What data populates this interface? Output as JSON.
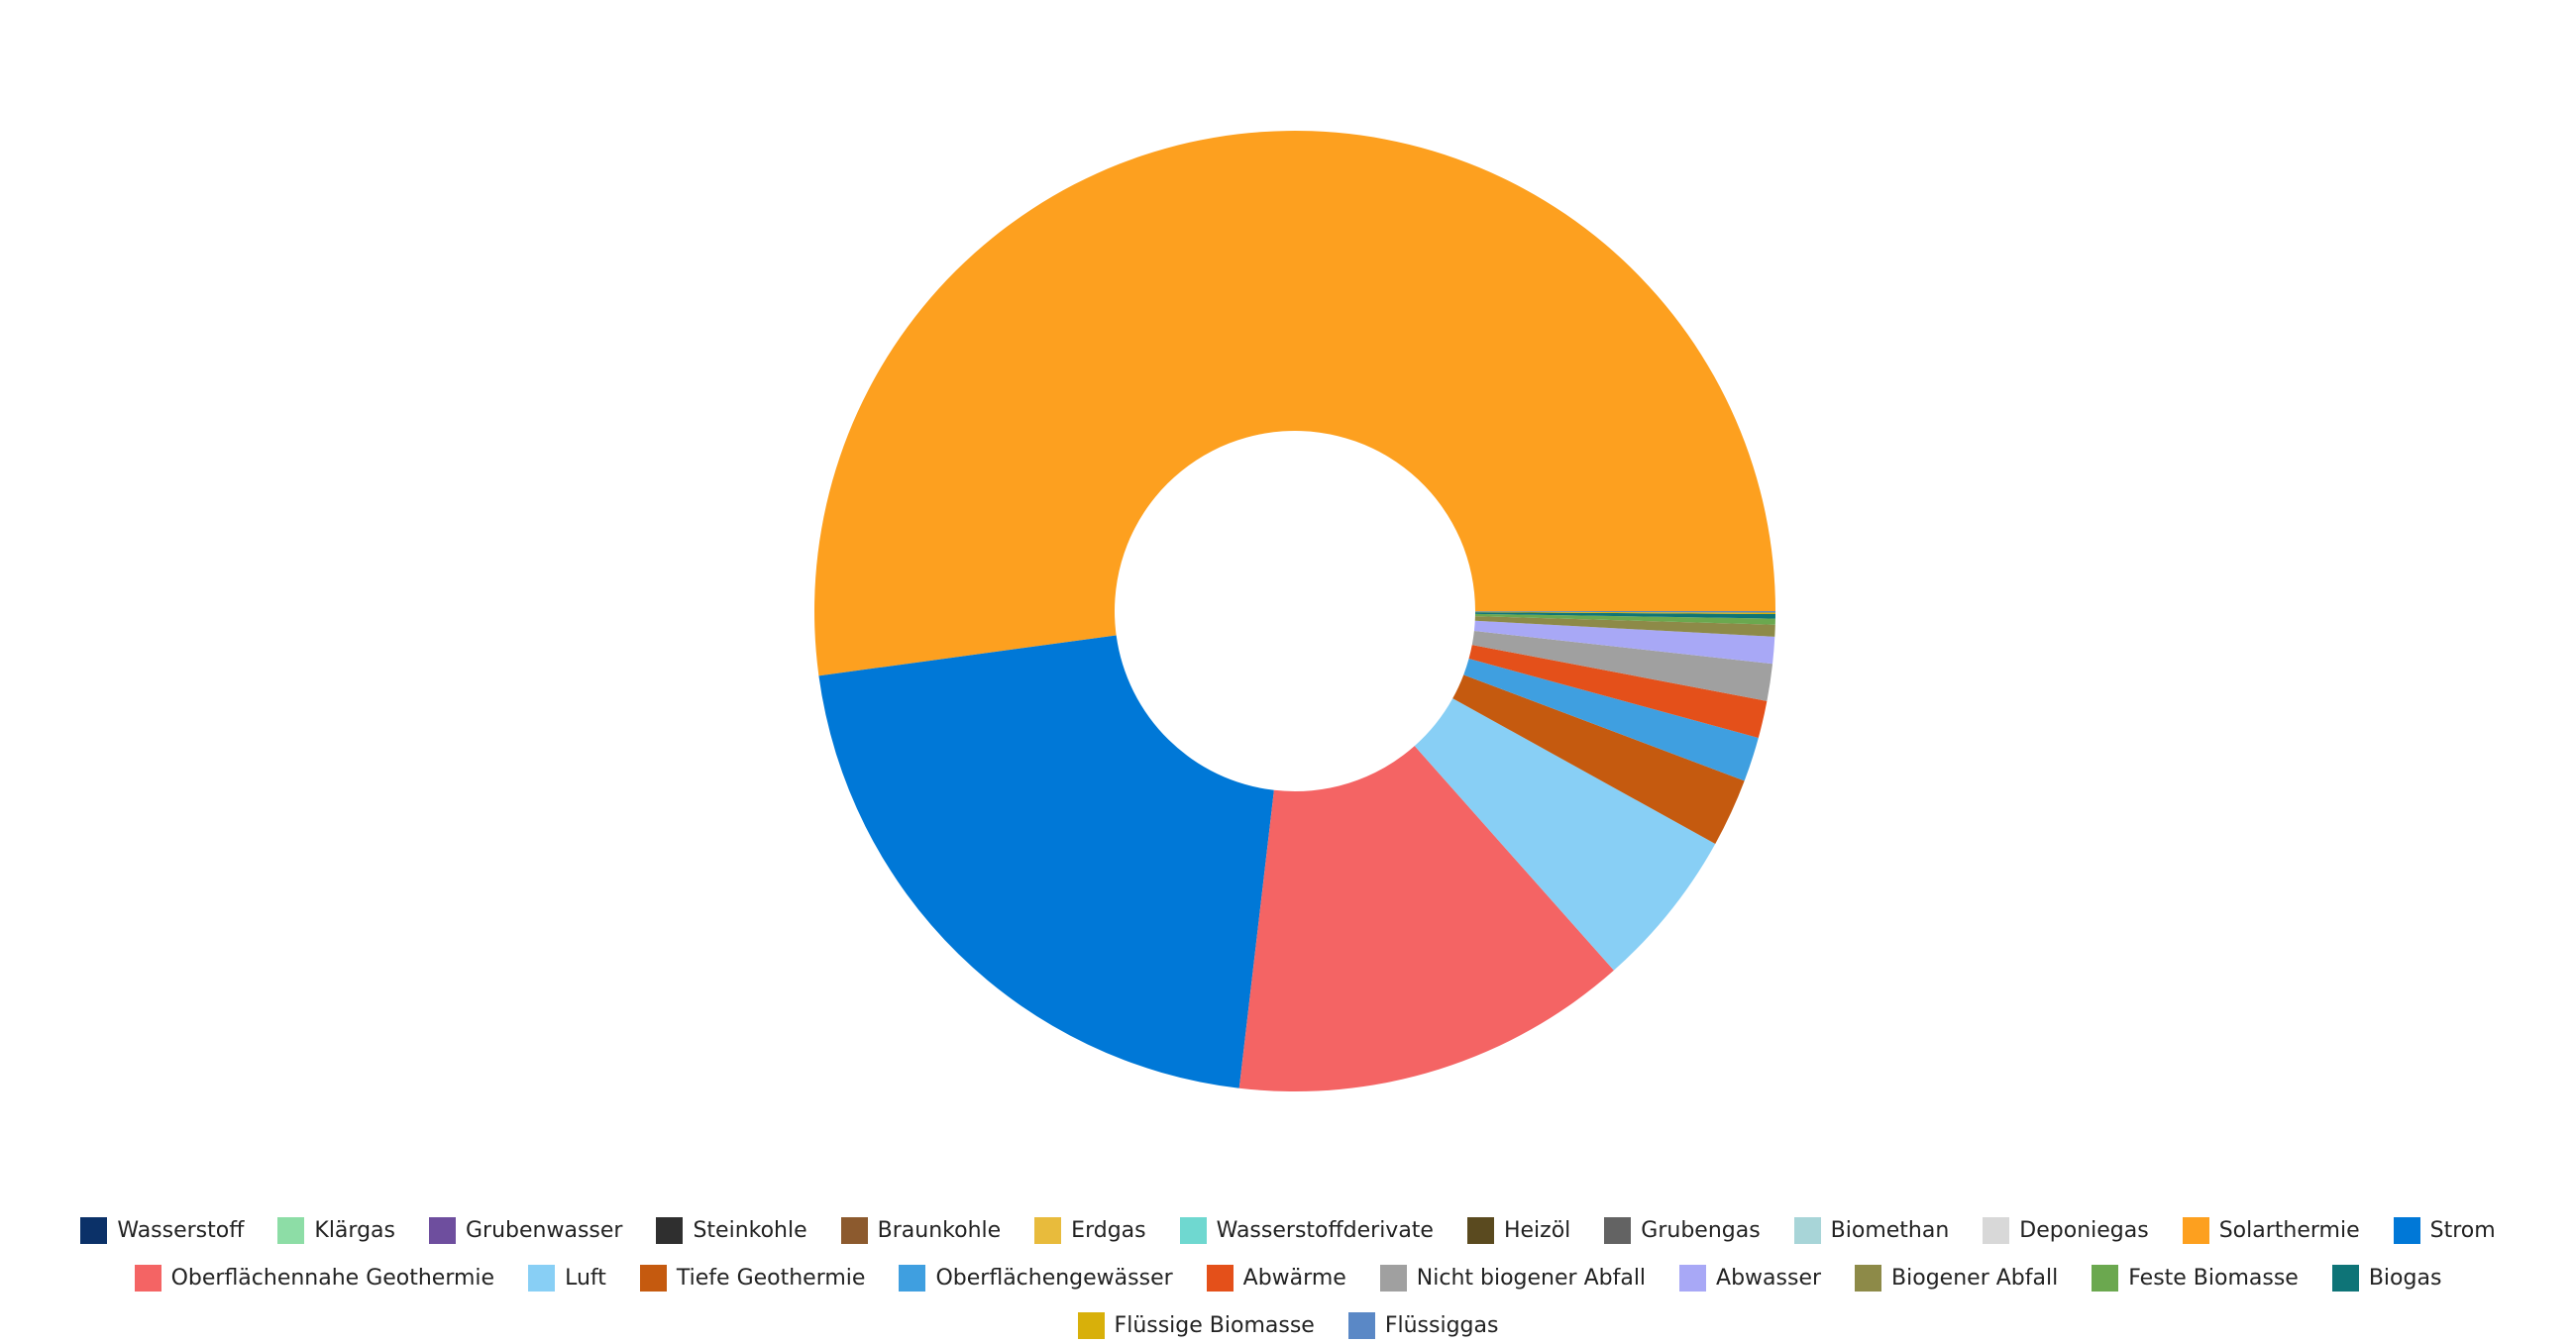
{
  "chart_data": {
    "type": "donut",
    "categories": [
      "Wasserstoff",
      "Klärgas",
      "Grubenwasser",
      "Steinkohle",
      "Braunkohle",
      "Erdgas",
      "Wasserstoffderivate",
      "Heizöl",
      "Grubengas",
      "Biomethan",
      "Deponiegas",
      "Solarthermie",
      "Strom",
      "Oberflächennahe Geothermie",
      "Luft",
      "Tiefe Geothermie",
      "Oberflächengewässer",
      "Abwärme",
      "Nicht biogener Abfall",
      "Abwasser",
      "Biogener Abfall",
      "Feste Biomasse",
      "Biogas",
      "Flüssige Biomasse",
      "Flüssiggas"
    ],
    "values": [
      0,
      0,
      0,
      0,
      0,
      0,
      0,
      0,
      0,
      0,
      0,
      52.15,
      21,
      13.4,
      5.4,
      2.3,
      1.5,
      1.25,
      1.25,
      0.9,
      0.4,
      0.2,
      0.15,
      0.05,
      0.05
    ],
    "colors": [
      "#0b3168",
      "#8ddda6",
      "#6e4e9e",
      "#2f2f2f",
      "#8c5a2e",
      "#e8bb3c",
      "#6fd8d0",
      "#5a4a1f",
      "#636363",
      "#a8d5d8",
      "#d8d8d8",
      "#fda01f",
      "#0078d7",
      "#f46464",
      "#88cff5",
      "#c55a0f",
      "#3f9fe0",
      "#e4501a",
      "#a0a0a0",
      "#a8a8f6",
      "#8d8a48",
      "#6ba84f",
      "#0e7477",
      "#d8b00a",
      "#5a88c6"
    ],
    "legend": "bottom"
  }
}
